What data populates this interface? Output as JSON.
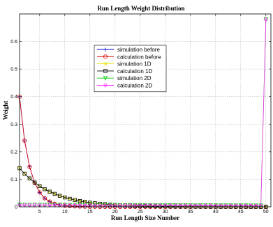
{
  "chart_data": {
    "type": "line",
    "title": "Run Length Weight Distribution",
    "xlabel": "Run Length Size Number",
    "ylabel": "Weight",
    "xlim": [
      1,
      51
    ],
    "ylim": [
      0,
      0.7
    ],
    "x_ticks": [
      5,
      10,
      15,
      20,
      25,
      30,
      35,
      40,
      45,
      50
    ],
    "y_ticks": [
      0,
      0.1,
      0.2,
      0.3,
      0.4,
      0.5,
      0.6
    ],
    "grid": true,
    "legend_position": "upper-center",
    "series": [
      {
        "name": "simulation before",
        "color": "#0000cc",
        "marker": "plus",
        "x": [
          1,
          2,
          3,
          4,
          5,
          6,
          7,
          8,
          9,
          10,
          11,
          12,
          13,
          14,
          15,
          16,
          17,
          18,
          19,
          20,
          21,
          22,
          23,
          24,
          25,
          26,
          27,
          28,
          29,
          30,
          31,
          32,
          33,
          34,
          35,
          36,
          37,
          38,
          39,
          40,
          41,
          42,
          43,
          44,
          45,
          46,
          47,
          48,
          49,
          50
        ],
        "y": [
          0.4,
          0.24,
          0.145,
          0.087,
          0.052,
          0.031,
          0.019,
          0.011,
          0.007,
          0.004,
          0.0025,
          0.0015,
          0.001,
          0.0006,
          0.0004,
          0.0002,
          0.0001,
          0.0001,
          0,
          0,
          0,
          0,
          0,
          0,
          0,
          0,
          0,
          0,
          0,
          0,
          0,
          0,
          0,
          0,
          0,
          0,
          0,
          0,
          0,
          0,
          0,
          0,
          0,
          0,
          0,
          0,
          0,
          0,
          0,
          0
        ]
      },
      {
        "name": "calculation before",
        "color": "#dd0000",
        "marker": "circle",
        "x": [
          1,
          2,
          3,
          4,
          5,
          6,
          7,
          8,
          9,
          10,
          11,
          12,
          13,
          14,
          15,
          16,
          17,
          18,
          19,
          20,
          21,
          22,
          23,
          24,
          25,
          26,
          27,
          28,
          29,
          30,
          31,
          32,
          33,
          34,
          35,
          36,
          37,
          38,
          39,
          40,
          41,
          42,
          43,
          44,
          45,
          46,
          47,
          48,
          49,
          50
        ],
        "y": [
          0.4,
          0.24,
          0.145,
          0.087,
          0.052,
          0.031,
          0.019,
          0.011,
          0.007,
          0.004,
          0.0025,
          0.0015,
          0.001,
          0.0006,
          0.0004,
          0.0002,
          0.0001,
          0.0001,
          0,
          0,
          0,
          0,
          0,
          0,
          0,
          0,
          0,
          0,
          0,
          0,
          0,
          0,
          0,
          0,
          0,
          0,
          0,
          0,
          0,
          0,
          0,
          0,
          0,
          0,
          0,
          0,
          0,
          0,
          0,
          0
        ]
      },
      {
        "name": "simulation 1D",
        "color": "#e6e600",
        "marker": "x",
        "x": [
          1,
          2,
          3,
          4,
          5,
          6,
          7,
          8,
          9,
          10,
          11,
          12,
          13,
          14,
          15,
          16,
          17,
          18,
          19,
          20,
          21,
          22,
          23,
          24,
          25,
          26,
          27,
          28,
          29,
          30,
          31,
          32,
          33,
          34,
          35,
          36,
          37,
          38,
          39,
          40,
          41,
          42,
          43,
          44,
          45,
          46,
          47,
          48,
          49,
          50
        ],
        "y": [
          0.14,
          0.12,
          0.103,
          0.088,
          0.075,
          0.064,
          0.055,
          0.047,
          0.04,
          0.034,
          0.029,
          0.025,
          0.021,
          0.018,
          0.015,
          0.013,
          0.011,
          0.0095,
          0.008,
          0.0069,
          0.0059,
          0.005,
          0.0043,
          0.0037,
          0.0031,
          0.0027,
          0.0023,
          0.0019,
          0.0016,
          0.0014,
          0.0012,
          0.001,
          0.0009,
          0.0008,
          0.0007,
          0.0006,
          0.0005,
          0.0004,
          0.0003,
          0.0003,
          0.0002,
          0.0002,
          0.0002,
          0.0001,
          0.0001,
          0.0001,
          0.0001,
          0.0001,
          0,
          0
        ]
      },
      {
        "name": "calculation 1D",
        "color": "#000000",
        "marker": "square",
        "x": [
          1,
          2,
          3,
          4,
          5,
          6,
          7,
          8,
          9,
          10,
          11,
          12,
          13,
          14,
          15,
          16,
          17,
          18,
          19,
          20,
          21,
          22,
          23,
          24,
          25,
          26,
          27,
          28,
          29,
          30,
          31,
          32,
          33,
          34,
          35,
          36,
          37,
          38,
          39,
          40,
          41,
          42,
          43,
          44,
          45,
          46,
          47,
          48,
          49,
          50
        ],
        "y": [
          0.14,
          0.12,
          0.103,
          0.088,
          0.075,
          0.064,
          0.055,
          0.047,
          0.04,
          0.034,
          0.029,
          0.025,
          0.021,
          0.018,
          0.015,
          0.013,
          0.011,
          0.0095,
          0.008,
          0.0069,
          0.0059,
          0.005,
          0.0043,
          0.0037,
          0.0031,
          0.0027,
          0.0023,
          0.0019,
          0.0016,
          0.0014,
          0.0012,
          0.001,
          0.0009,
          0.0008,
          0.0007,
          0.0006,
          0.0005,
          0.0004,
          0.0003,
          0.0003,
          0.0002,
          0.0002,
          0.0002,
          0.0001,
          0.0001,
          0.0001,
          0.0001,
          0.0001,
          0,
          0
        ]
      },
      {
        "name": "simulation 2D",
        "color": "#00cc00",
        "marker": "triangle-down",
        "x": [
          1,
          2,
          3,
          4,
          5,
          6,
          7,
          8,
          9,
          10,
          11,
          12,
          13,
          14,
          15,
          16,
          17,
          18,
          19,
          20,
          21,
          22,
          23,
          24,
          25,
          26,
          27,
          28,
          29,
          30,
          31,
          32,
          33,
          34,
          35,
          36,
          37,
          38,
          39,
          40,
          41,
          42,
          43,
          44,
          45,
          46,
          47,
          48,
          49,
          50
        ],
        "y": [
          0.0065,
          0.0065,
          0.0064,
          0.0064,
          0.0063,
          0.0063,
          0.0062,
          0.0062,
          0.0061,
          0.0061,
          0.006,
          0.006,
          0.0059,
          0.0059,
          0.0058,
          0.0058,
          0.0057,
          0.0057,
          0.0056,
          0.0056,
          0.0055,
          0.0055,
          0.0054,
          0.0054,
          0.0053,
          0.0053,
          0.0052,
          0.0052,
          0.0051,
          0.0051,
          0.005,
          0.005,
          0.0049,
          0.0049,
          0.0048,
          0.0048,
          0.0047,
          0.0047,
          0.0046,
          0.0046,
          0.0045,
          0.0045,
          0.0044,
          0.0044,
          0.0043,
          0.0043,
          0.0042,
          0.0042,
          0.0041,
          0.68
        ]
      },
      {
        "name": "calculation 2D",
        "color": "#ff33ff",
        "marker": "diamond",
        "x": [
          1,
          2,
          3,
          4,
          5,
          6,
          7,
          8,
          9,
          10,
          11,
          12,
          13,
          14,
          15,
          16,
          17,
          18,
          19,
          20,
          21,
          22,
          23,
          24,
          25,
          26,
          27,
          28,
          29,
          30,
          31,
          32,
          33,
          34,
          35,
          36,
          37,
          38,
          39,
          40,
          41,
          42,
          43,
          44,
          45,
          46,
          47,
          48,
          49,
          50
        ],
        "y": [
          0.0065,
          0.0065,
          0.0064,
          0.0064,
          0.0063,
          0.0063,
          0.0062,
          0.0062,
          0.0061,
          0.0061,
          0.006,
          0.006,
          0.0059,
          0.0059,
          0.0058,
          0.0058,
          0.0057,
          0.0057,
          0.0056,
          0.0056,
          0.0055,
          0.0055,
          0.0054,
          0.0054,
          0.0053,
          0.0053,
          0.0052,
          0.0052,
          0.0051,
          0.0051,
          0.005,
          0.005,
          0.0049,
          0.0049,
          0.0048,
          0.0048,
          0.0047,
          0.0047,
          0.0046,
          0.0046,
          0.0045,
          0.0045,
          0.0044,
          0.0044,
          0.0043,
          0.0043,
          0.0042,
          0.0042,
          0.0041,
          0.68
        ]
      }
    ]
  }
}
